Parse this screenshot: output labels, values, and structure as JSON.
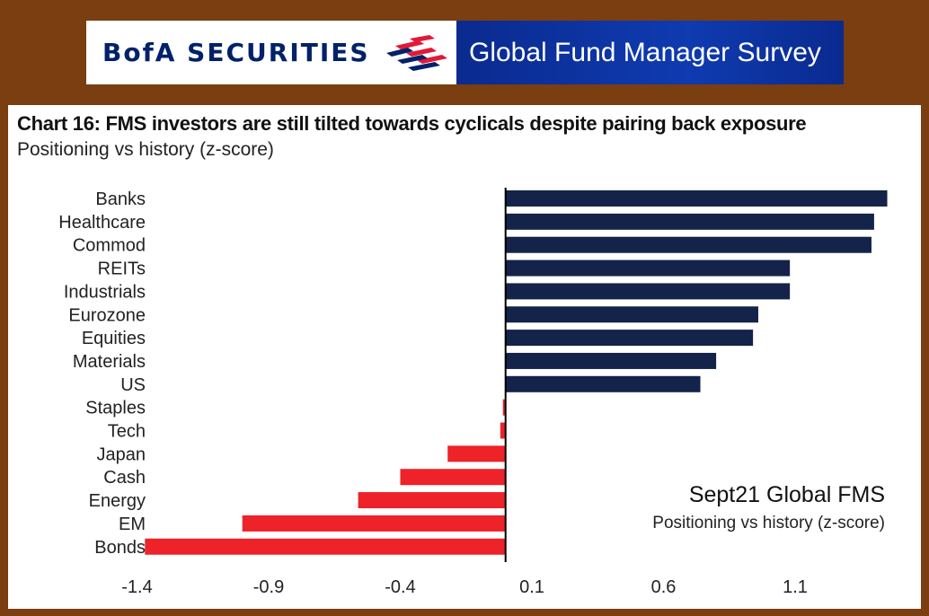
{
  "header": {
    "brand": "BofA SECURITIES",
    "survey_title": "Global Fund Manager Survey",
    "colors": {
      "brand_navy": "#012169",
      "brand_red": "#e31837",
      "banner_blue": "#0f3bb0"
    },
    "logo_icon": "bofa-flag-icon"
  },
  "chart_data": {
    "type": "bar",
    "orientation": "horizontal",
    "title": "Chart 16: FMS investors are still tilted  towards cyclicals despite pairing back exposure",
    "subtitle": "Positioning vs history (z-score)",
    "annotation": {
      "title": "Sept21 Global FMS",
      "subtitle": "Positioning vs history (z-score)"
    },
    "categories": [
      "Banks",
      "Healthcare",
      "Commod",
      "REITs",
      "Industrials",
      "Eurozone",
      "Equities",
      "Materials",
      "US",
      "Staples",
      "Tech",
      "Japan",
      "Cash",
      "Energy",
      "EM",
      "Bonds"
    ],
    "values": [
      1.45,
      1.4,
      1.39,
      1.08,
      1.08,
      0.96,
      0.94,
      0.8,
      0.74,
      -0.01,
      -0.02,
      -0.22,
      -0.4,
      -0.56,
      -1.0,
      -1.37
    ],
    "x_ticks": [
      "-1.4",
      "-0.9",
      "-0.4",
      "0.1",
      "0.6",
      "1.1"
    ],
    "xlim": [
      -1.4,
      1.45
    ],
    "positive_color": "#14234a",
    "negative_color": "#ee2229",
    "grid": false,
    "legend": "none"
  }
}
